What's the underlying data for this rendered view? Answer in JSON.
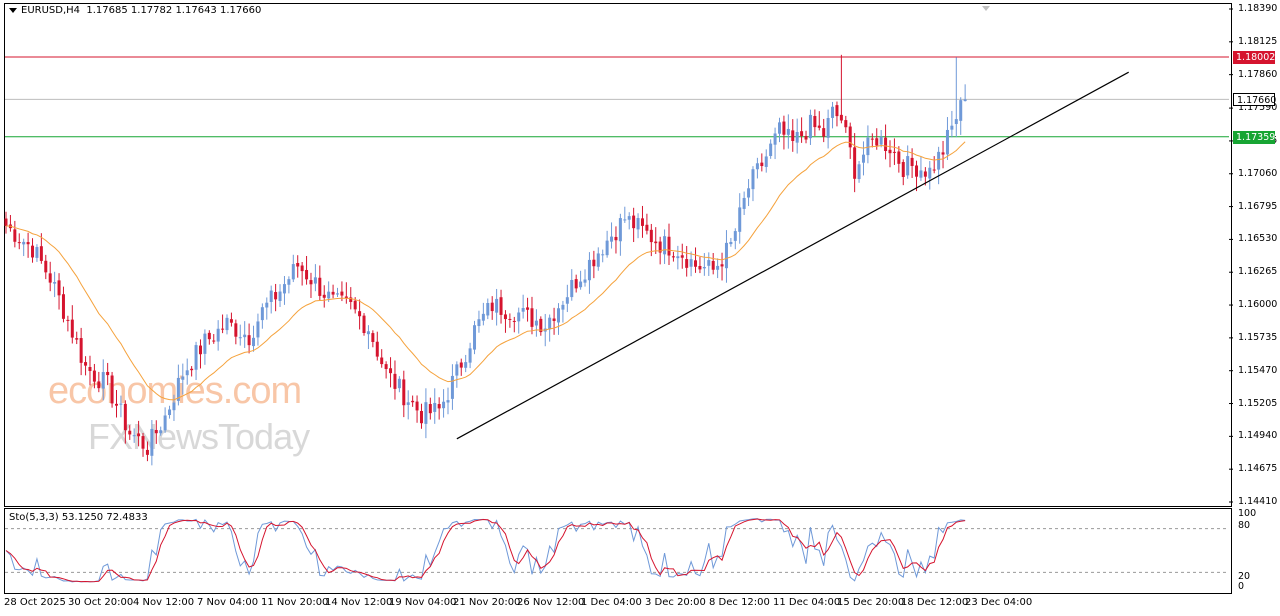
{
  "header": {
    "symbol_label": "EURUSD,H4",
    "ohlc_text": "1.17685 1.17782 1.17643 1.17660"
  },
  "oscillator": {
    "label": "Sto(5,3,3) 53.1250 72.4833",
    "levels": [
      "100",
      "80",
      "20",
      "0"
    ]
  },
  "watermark": {
    "brand": "economies.com",
    "subbrand": "FXNewsToday"
  },
  "colors": {
    "bull": "#6f99d8",
    "bear": "#d5142e",
    "ma": "#f5a23c",
    "resistance": "#d5142e",
    "support": "#17a533",
    "current": "#bdbdbd",
    "stoch_main": "#6f99d8",
    "stoch_signal": "#d5142e"
  },
  "chart_data": {
    "type": "candlestick",
    "symbol": "EURUSD",
    "timeframe": "H4",
    "ylim": [
      1.1441,
      1.1839
    ],
    "y_ticks": [
      "1.18390",
      "1.18125",
      "1.17860",
      "1.17590",
      "1.17325",
      "1.17060",
      "1.16795",
      "1.16530",
      "1.16265",
      "1.16000",
      "1.15735",
      "1.15470",
      "1.15205",
      "1.14940",
      "1.14675",
      "1.14410"
    ],
    "x_ticks": [
      "28 Oct 2025",
      "30 Oct 20:00",
      "4 Nov 12:00",
      "7 Nov 04:00",
      "11 Nov 20:00",
      "14 Nov 12:00",
      "19 Nov 04:00",
      "21 Nov 20:00",
      "26 Nov 12:00",
      "1 Dec 04:00",
      "3 Dec 20:00",
      "8 Dec 12:00",
      "11 Dec 04:00",
      "15 Dec 20:00",
      "18 Dec 12:00",
      "23 Dec 04:00"
    ],
    "horizontal_lines": [
      {
        "price": 1.18002,
        "label": "1.18002",
        "color": "#d5142e"
      },
      {
        "price": 1.1766,
        "label": "1.17660",
        "color": "#bdbdbd"
      },
      {
        "price": 1.17359,
        "label": "1.17359",
        "color": "#17a533"
      }
    ],
    "trendline": {
      "from": {
        "date": "21 Nov 2025",
        "price": 1.1492
      },
      "to": {
        "date": "25 Dec 2025",
        "price": 1.1788
      }
    },
    "moving_average_color": "#f5a23c",
    "path_anchors": [
      [
        0,
        1.1664
      ],
      [
        6,
        1.1646
      ],
      [
        10,
        1.1622
      ],
      [
        14,
        1.1588
      ],
      [
        18,
        1.155
      ],
      [
        23,
        1.1535
      ],
      [
        28,
        1.1497
      ],
      [
        32,
        1.1485
      ],
      [
        36,
        1.151
      ],
      [
        40,
        1.1545
      ],
      [
        45,
        1.157
      ],
      [
        50,
        1.1585
      ],
      [
        55,
        1.1575
      ],
      [
        58,
        1.1595
      ],
      [
        62,
        1.1612
      ],
      [
        66,
        1.1632
      ],
      [
        70,
        1.1618
      ],
      [
        74,
        1.1602
      ],
      [
        78,
        1.1598
      ],
      [
        82,
        1.1582
      ],
      [
        86,
        1.1545
      ],
      [
        90,
        1.1528
      ],
      [
        94,
        1.1512
      ],
      [
        98,
        1.1515
      ],
      [
        102,
        1.1545
      ],
      [
        106,
        1.158
      ],
      [
        110,
        1.16
      ],
      [
        115,
        1.1595
      ],
      [
        118,
        1.159
      ],
      [
        122,
        1.1585
      ],
      [
        126,
        1.1605
      ],
      [
        130,
        1.1625
      ],
      [
        135,
        1.1648
      ],
      [
        140,
        1.167
      ],
      [
        144,
        1.166
      ],
      [
        148,
        1.165
      ],
      [
        152,
        1.1645
      ],
      [
        156,
        1.1632
      ],
      [
        160,
        1.1628
      ],
      [
        164,
        1.1648
      ],
      [
        168,
        1.1695
      ],
      [
        172,
        1.172
      ],
      [
        175,
        1.174
      ],
      [
        178,
        1.173
      ],
      [
        182,
        1.1745
      ],
      [
        185,
        1.1738
      ],
      [
        187,
        1.1755
      ],
      [
        189,
        1.175
      ],
      [
        192,
        1.171
      ],
      [
        194,
        1.1722
      ],
      [
        197,
        1.1735
      ],
      [
        200,
        1.1728
      ],
      [
        203,
        1.1712
      ],
      [
        206,
        1.1712
      ],
      [
        209,
        1.1708
      ],
      [
        212,
        1.1725
      ],
      [
        215,
        1.1752
      ],
      [
        217,
        1.1767
      ]
    ],
    "spikes": [
      {
        "bar": 189,
        "high": 1.1802
      },
      {
        "bar": 215,
        "high": 1.18
      }
    ],
    "stoch_levels": [
      80,
      20
    ]
  }
}
